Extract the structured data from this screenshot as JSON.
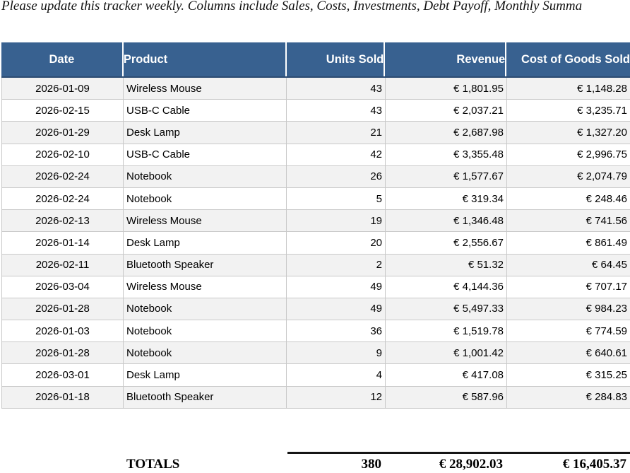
{
  "note": "Please update this tracker weekly. Columns include Sales, Costs, Investments, Debt Payoff, Monthly Summa",
  "table": {
    "columns": [
      "Date",
      "Product",
      "Units Sold",
      "Revenue",
      "Cost of Goods Sold"
    ],
    "rows": [
      [
        "2026-01-09",
        "Wireless Mouse",
        "43",
        "€ 1,801.95",
        "€ 1,148.28"
      ],
      [
        "2026-02-15",
        "USB-C Cable",
        "43",
        "€ 2,037.21",
        "€ 3,235.71"
      ],
      [
        "2026-01-29",
        "Desk Lamp",
        "21",
        "€ 2,687.98",
        "€ 1,327.20"
      ],
      [
        "2026-02-10",
        "USB-C Cable",
        "42",
        "€ 3,355.48",
        "€ 2,996.75"
      ],
      [
        "2026-02-24",
        "Notebook",
        "26",
        "€ 1,577.67",
        "€ 2,074.79"
      ],
      [
        "2026-02-24",
        "Notebook",
        "5",
        "€ 319.34",
        "€ 248.46"
      ],
      [
        "2026-02-13",
        "Wireless Mouse",
        "19",
        "€ 1,346.48",
        "€ 741.56"
      ],
      [
        "2026-01-14",
        "Desk Lamp",
        "20",
        "€ 2,556.67",
        "€ 861.49"
      ],
      [
        "2026-02-11",
        "Bluetooth Speaker",
        "2",
        "€ 51.32",
        "€ 64.45"
      ],
      [
        "2026-03-04",
        "Wireless Mouse",
        "49",
        "€ 4,144.36",
        "€ 707.17"
      ],
      [
        "2026-01-28",
        "Notebook",
        "49",
        "€ 5,497.33",
        "€ 984.23"
      ],
      [
        "2026-01-03",
        "Notebook",
        "36",
        "€ 1,519.78",
        "€ 774.59"
      ],
      [
        "2026-01-28",
        "Notebook",
        "9",
        "€ 1,001.42",
        "€ 640.61"
      ],
      [
        "2026-03-01",
        "Desk Lamp",
        "4",
        "€ 417.08",
        "€ 315.25"
      ],
      [
        "2026-01-18",
        "Bluetooth Speaker",
        "12",
        "€ 587.96",
        "€ 284.83"
      ]
    ]
  },
  "totals": {
    "label": "TOTALS",
    "units": "380",
    "revenue": "€ 28,902.03",
    "cost": "€ 16,405.37"
  },
  "colors": {
    "header_bg": "#386190",
    "header_border": "#2c4c72",
    "row_alt": "#f2f2f2",
    "grid": "#c9c9c9"
  }
}
